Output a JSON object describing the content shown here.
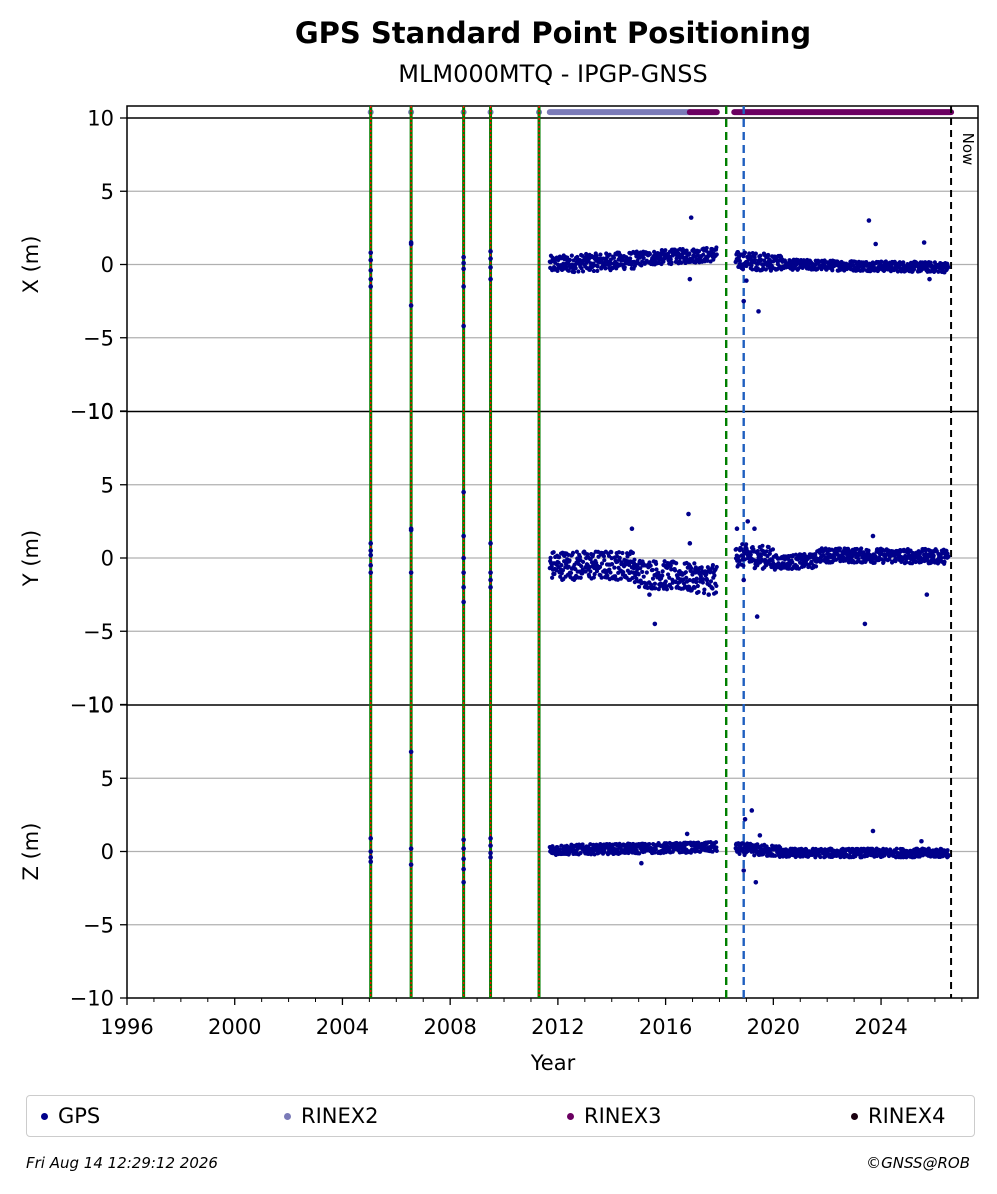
{
  "chart_data": {
    "type": "scatter",
    "title": "GPS Standard Point Positioning",
    "subtitle": "MLM000MTQ - IPGP-GNSS",
    "xlabel": "Year",
    "xlim": [
      1996,
      2027.6
    ],
    "xticks": [
      1996,
      2000,
      2004,
      2008,
      2012,
      2016,
      2020,
      2024
    ],
    "panels": [
      {
        "ylabel": "X (m)",
        "ylim": [
          -10,
          10
        ],
        "yticks": [
          "−10",
          "−5",
          "0",
          "5",
          "10"
        ],
        "clusters": [
          {
            "x": 2005.05,
            "values": [
              0.8,
              0.3,
              -0.4,
              -1.0,
              -1.5
            ]
          },
          {
            "x": 2006.55,
            "values": [
              1.5,
              1.4,
              -2.8
            ]
          },
          {
            "x": 2008.5,
            "values": [
              0.5,
              0.1,
              -0.3,
              -1.5,
              -4.2
            ]
          },
          {
            "x": 2009.5,
            "values": [
              0.9,
              0.4,
              -0.2,
              -1.0
            ]
          }
        ],
        "series": [
          {
            "from": 2011.7,
            "to": 2015.0,
            "center_from": 0.0,
            "center_to": 0.3,
            "spread": 0.6
          },
          {
            "from": 2015.0,
            "to": 2017.9,
            "center_from": 0.4,
            "center_to": 0.7,
            "spread": 0.5
          },
          {
            "from": 2018.6,
            "to": 2020.3,
            "center_from": 0.3,
            "center_to": 0.1,
            "spread": 0.6
          },
          {
            "from": 2020.3,
            "to": 2026.5,
            "center_from": 0.0,
            "center_to": -0.2,
            "spread": 0.35
          }
        ],
        "outliers": [
          [
            2016.95,
            3.2
          ],
          [
            2016.9,
            -1.0
          ],
          [
            2018.9,
            -2.5
          ],
          [
            2019.45,
            -3.2
          ],
          [
            2023.55,
            3.0
          ],
          [
            2023.8,
            1.4
          ],
          [
            2025.6,
            1.5
          ],
          [
            2025.8,
            -1.0
          ],
          [
            2019.0,
            -1.1
          ]
        ]
      },
      {
        "ylabel": "Y (m)",
        "ylim": [
          -10,
          10
        ],
        "yticks": [
          "−10",
          "−5",
          "0",
          "5",
          "10"
        ],
        "clusters": [
          {
            "x": 2005.05,
            "values": [
              1.0,
              0.5,
              0.2,
              -0.5,
              -1.0
            ]
          },
          {
            "x": 2006.55,
            "values": [
              2.0,
              1.9,
              -1.0
            ]
          },
          {
            "x": 2008.5,
            "values": [
              4.5,
              1.5,
              0.0,
              -1.0,
              -2.0,
              -3.0
            ]
          },
          {
            "x": 2009.5,
            "values": [
              1.0,
              -1.0,
              -1.5,
              -2.0
            ]
          }
        ],
        "series": [
          {
            "from": 2011.7,
            "to": 2014.8,
            "center_from": -0.5,
            "center_to": -0.5,
            "spread": 1.0
          },
          {
            "from": 2014.8,
            "to": 2017.9,
            "center_from": -1.0,
            "center_to": -1.5,
            "spread": 1.0
          },
          {
            "from": 2018.6,
            "to": 2020.0,
            "center_from": 0.2,
            "center_to": 0.0,
            "spread": 0.8
          },
          {
            "from": 2020.0,
            "to": 2021.6,
            "center_from": -0.3,
            "center_to": -0.2,
            "spread": 0.5
          },
          {
            "from": 2021.6,
            "to": 2026.5,
            "center_from": 0.2,
            "center_to": 0.1,
            "spread": 0.5
          }
        ],
        "outliers": [
          [
            2014.75,
            2.0
          ],
          [
            2015.4,
            -2.5
          ],
          [
            2015.6,
            -4.5
          ],
          [
            2016.85,
            3.0
          ],
          [
            2016.9,
            1.0
          ],
          [
            2017.6,
            -2.5
          ],
          [
            2018.65,
            2.0
          ],
          [
            2019.05,
            2.5
          ],
          [
            2019.3,
            2.0
          ],
          [
            2019.4,
            -4.0
          ],
          [
            2023.4,
            -4.5
          ],
          [
            2023.7,
            1.5
          ],
          [
            2025.7,
            -2.5
          ],
          [
            2018.9,
            -1.5
          ]
        ]
      },
      {
        "ylabel": "Z (m)",
        "ylim": [
          -10,
          10
        ],
        "yticks": [
          "−10",
          "−5",
          "0",
          "5",
          "10"
        ],
        "clusters": [
          {
            "x": 2005.05,
            "values": [
              0.9,
              0.0,
              -0.4,
              -0.7
            ]
          },
          {
            "x": 2006.55,
            "values": [
              6.8,
              0.2,
              -0.9
            ]
          },
          {
            "x": 2008.5,
            "values": [
              0.8,
              0.2,
              -0.5,
              -1.2,
              -2.1
            ]
          },
          {
            "x": 2009.5,
            "values": [
              0.9,
              0.4,
              -0.1,
              -0.4
            ]
          }
        ],
        "series": [
          {
            "from": 2011.7,
            "to": 2017.9,
            "center_from": 0.1,
            "center_to": 0.3,
            "spread": 0.35
          },
          {
            "from": 2018.6,
            "to": 2020.3,
            "center_from": 0.2,
            "center_to": 0.0,
            "spread": 0.4
          },
          {
            "from": 2020.3,
            "to": 2026.5,
            "center_from": -0.1,
            "center_to": -0.1,
            "spread": 0.3
          }
        ],
        "outliers": [
          [
            2018.95,
            2.2
          ],
          [
            2019.2,
            2.8
          ],
          [
            2019.35,
            -2.1
          ],
          [
            2018.9,
            -1.3
          ],
          [
            2019.5,
            1.1
          ],
          [
            2016.8,
            1.2
          ],
          [
            2023.7,
            1.4
          ],
          [
            2015.1,
            -0.8
          ],
          [
            2025.5,
            0.7
          ]
        ]
      }
    ],
    "vertical_markers": [
      {
        "x": 2005.05,
        "style": "solid-green-dotted-red"
      },
      {
        "x": 2006.55,
        "style": "solid-green-dotted-red"
      },
      {
        "x": 2008.5,
        "style": "solid-green-dotted-red"
      },
      {
        "x": 2009.5,
        "style": "solid-green-dotted-red"
      },
      {
        "x": 2011.3,
        "style": "solid-green-dotted-red"
      },
      {
        "x": 2018.25,
        "style": "dashed-green"
      },
      {
        "x": 2018.9,
        "style": "dashed-blue"
      },
      {
        "x": 2026.6,
        "style": "dashed-black"
      }
    ],
    "now_label": "Now",
    "data_availability": {
      "y_value": 10.4,
      "rinex2": [
        [
          2005.05,
          2005.05
        ],
        [
          2006.55,
          2006.55
        ],
        [
          2008.5,
          2008.5
        ],
        [
          2009.5,
          2009.5
        ],
        [
          2011.3,
          2011.3
        ],
        [
          2011.7,
          2016.9
        ]
      ],
      "rinex3": [
        [
          2016.9,
          2017.9
        ],
        [
          2018.55,
          2026.6
        ]
      ]
    },
    "colors": {
      "gps": "#00008b",
      "rinex2": "#7b7bb8",
      "rinex3": "#6b0061",
      "rinex4": "#1a0010",
      "marker_green": "#007f00",
      "marker_red": "#ff0000",
      "marker_blue": "#1f5fbf",
      "grid": "#b0b0b0"
    },
    "legend": {
      "position": "bottom",
      "items": [
        {
          "label": "GPS",
          "color": "#00008b"
        },
        {
          "label": "RINEX2",
          "color": "#7b7bb8"
        },
        {
          "label": "RINEX3",
          "color": "#6b0061"
        },
        {
          "label": "RINEX4",
          "color": "#1a0010"
        }
      ]
    }
  },
  "footer": {
    "timestamp": "Fri Aug 14 12:29:12 2026",
    "copyright": "©GNSS@ROB"
  }
}
